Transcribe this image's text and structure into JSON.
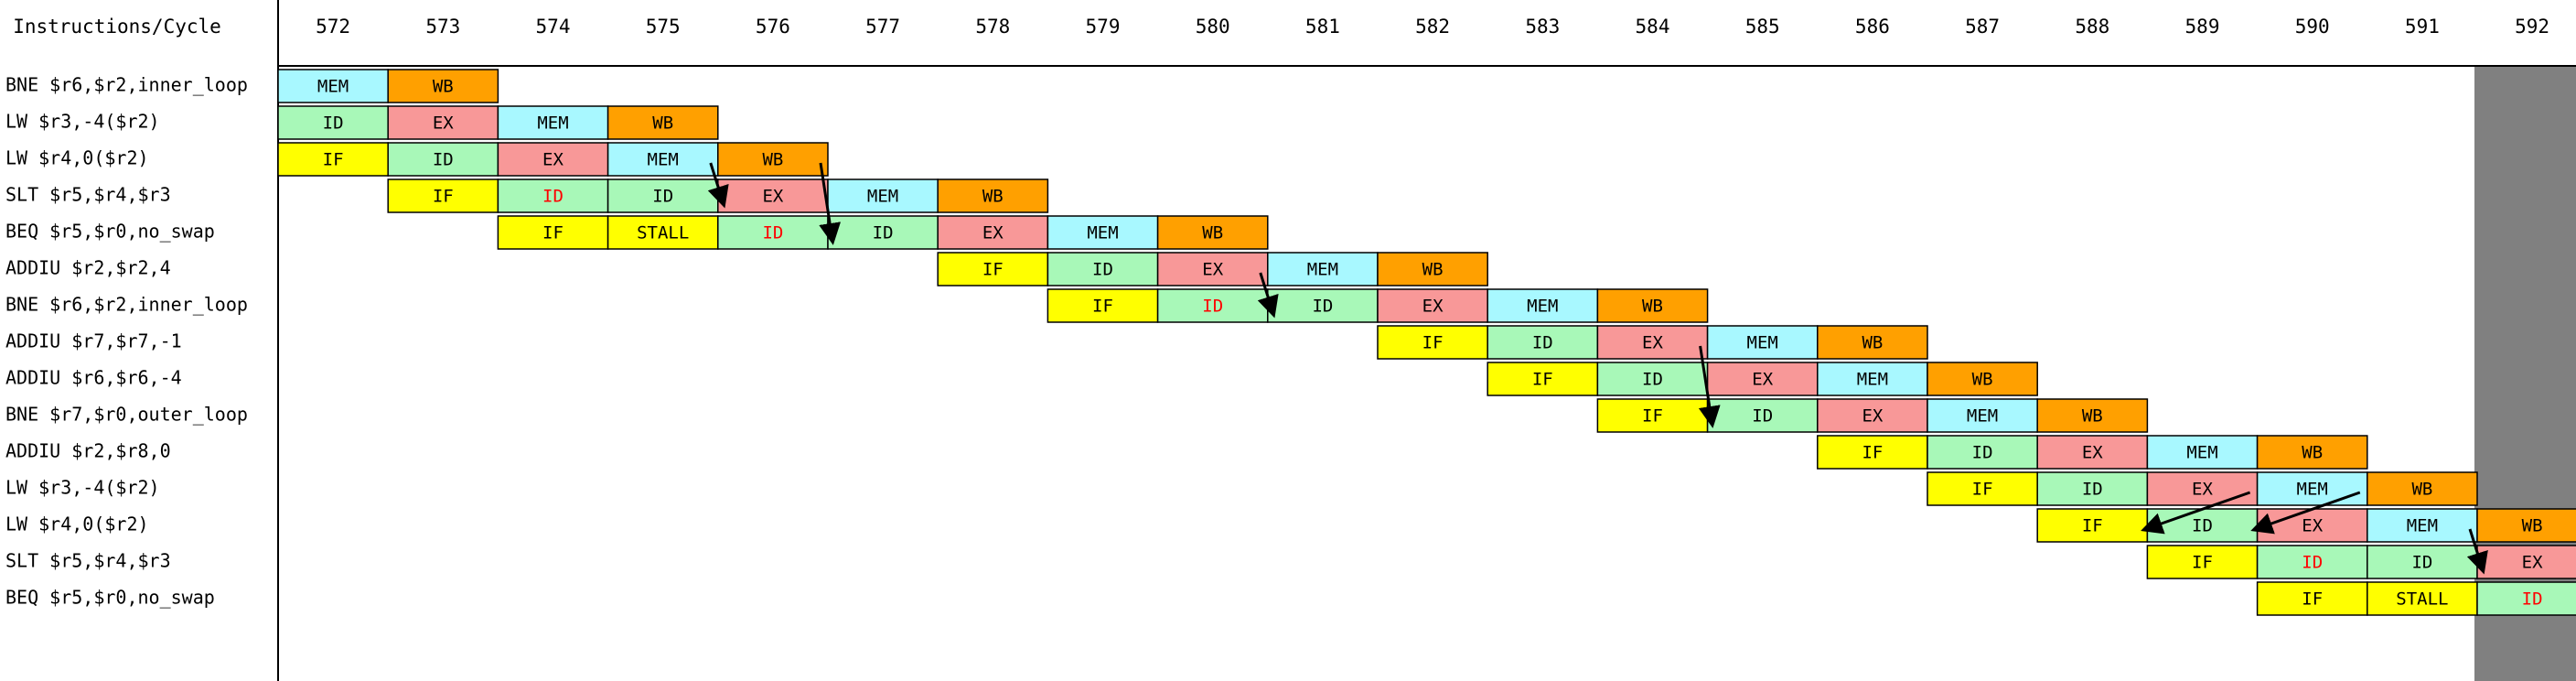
{
  "header": {
    "corner_label": "Instructions/Cycle",
    "cycles": [
      "572",
      "573",
      "574",
      "575",
      "576",
      "577",
      "578",
      "579",
      "580",
      "581",
      "582",
      "583",
      "584",
      "585",
      "586",
      "587",
      "588",
      "589",
      "590",
      "591",
      "592"
    ]
  },
  "instructions": [
    {
      "label": "BNE $r6,$r2,inner_loop",
      "stages": [
        {
          "c": 0,
          "s": "MEM"
        },
        {
          "c": 1,
          "s": "WB"
        }
      ]
    },
    {
      "label": "LW $r3,-4($r2)",
      "stages": [
        {
          "c": 0,
          "s": "ID"
        },
        {
          "c": 1,
          "s": "EX"
        },
        {
          "c": 2,
          "s": "MEM"
        },
        {
          "c": 3,
          "s": "WB"
        }
      ]
    },
    {
      "label": "LW $r4,0($r2)",
      "stages": [
        {
          "c": 0,
          "s": "IF"
        },
        {
          "c": 1,
          "s": "ID"
        },
        {
          "c": 2,
          "s": "EX"
        },
        {
          "c": 3,
          "s": "MEM"
        },
        {
          "c": 4,
          "s": "WB"
        }
      ]
    },
    {
      "label": "SLT $r5,$r4,$r3",
      "stages": [
        {
          "c": 1,
          "s": "IF"
        },
        {
          "c": 2,
          "s": "ID",
          "stall": true
        },
        {
          "c": 3,
          "s": "ID"
        },
        {
          "c": 4,
          "s": "EX"
        },
        {
          "c": 5,
          "s": "MEM"
        },
        {
          "c": 6,
          "s": "WB"
        }
      ]
    },
    {
      "label": "BEQ $r5,$r0,no_swap",
      "stages": [
        {
          "c": 2,
          "s": "IF"
        },
        {
          "c": 3,
          "s": "STALL"
        },
        {
          "c": 4,
          "s": "ID",
          "stall": true
        },
        {
          "c": 5,
          "s": "ID"
        },
        {
          "c": 6,
          "s": "EX"
        },
        {
          "c": 7,
          "s": "MEM"
        },
        {
          "c": 8,
          "s": "WB"
        }
      ]
    },
    {
      "label": "ADDIU $r2,$r2,4",
      "stages": [
        {
          "c": 6,
          "s": "IF"
        },
        {
          "c": 7,
          "s": "ID"
        },
        {
          "c": 8,
          "s": "EX"
        },
        {
          "c": 9,
          "s": "MEM"
        },
        {
          "c": 10,
          "s": "WB"
        }
      ]
    },
    {
      "label": "BNE $r6,$r2,inner_loop",
      "stages": [
        {
          "c": 7,
          "s": "IF"
        },
        {
          "c": 8,
          "s": "ID",
          "stall": true
        },
        {
          "c": 9,
          "s": "ID"
        },
        {
          "c": 10,
          "s": "EX"
        },
        {
          "c": 11,
          "s": "MEM"
        },
        {
          "c": 12,
          "s": "WB"
        }
      ]
    },
    {
      "label": "ADDIU $r7,$r7,-1",
      "stages": [
        {
          "c": 10,
          "s": "IF"
        },
        {
          "c": 11,
          "s": "ID"
        },
        {
          "c": 12,
          "s": "EX"
        },
        {
          "c": 13,
          "s": "MEM"
        },
        {
          "c": 14,
          "s": "WB"
        }
      ]
    },
    {
      "label": "ADDIU $r6,$r6,-4",
      "stages": [
        {
          "c": 11,
          "s": "IF"
        },
        {
          "c": 12,
          "s": "ID"
        },
        {
          "c": 13,
          "s": "EX"
        },
        {
          "c": 14,
          "s": "MEM"
        },
        {
          "c": 15,
          "s": "WB"
        }
      ]
    },
    {
      "label": "BNE $r7,$r0,outer_loop",
      "stages": [
        {
          "c": 12,
          "s": "IF"
        },
        {
          "c": 13,
          "s": "ID"
        },
        {
          "c": 14,
          "s": "EX"
        },
        {
          "c": 15,
          "s": "MEM"
        },
        {
          "c": 16,
          "s": "WB"
        }
      ]
    },
    {
      "label": "ADDIU $r2,$r8,0",
      "stages": [
        {
          "c": 14,
          "s": "IF"
        },
        {
          "c": 15,
          "s": "ID"
        },
        {
          "c": 16,
          "s": "EX"
        },
        {
          "c": 17,
          "s": "MEM"
        },
        {
          "c": 18,
          "s": "WB"
        }
      ]
    },
    {
      "label": "LW $r3,-4($r2)",
      "stages": [
        {
          "c": 15,
          "s": "IF"
        },
        {
          "c": 16,
          "s": "ID"
        },
        {
          "c": 17,
          "s": "EX"
        },
        {
          "c": 18,
          "s": "MEM"
        },
        {
          "c": 19,
          "s": "WB"
        }
      ]
    },
    {
      "label": "LW $r4,0($r2)",
      "stages": [
        {
          "c": 16,
          "s": "IF"
        },
        {
          "c": 17,
          "s": "ID"
        },
        {
          "c": 18,
          "s": "EX"
        },
        {
          "c": 19,
          "s": "MEM"
        },
        {
          "c": 20,
          "s": "WB"
        }
      ]
    },
    {
      "label": "SLT $r5,$r4,$r3",
      "stages": [
        {
          "c": 17,
          "s": "IF"
        },
        {
          "c": 18,
          "s": "ID",
          "stall": true
        },
        {
          "c": 19,
          "s": "ID"
        },
        {
          "c": 20,
          "s": "EX"
        }
      ]
    },
    {
      "label": "BEQ $r5,$r0,no_swap",
      "stages": [
        {
          "c": 18,
          "s": "IF"
        },
        {
          "c": 19,
          "s": "STALL"
        },
        {
          "c": 20,
          "s": "ID",
          "stall": true
        }
      ]
    }
  ],
  "forwarding_arrows": [
    {
      "from_row": 2,
      "from_col": 3,
      "to_row": 3,
      "to_col": 4
    },
    {
      "from_row": 2,
      "from_col": 4,
      "to_row": 4,
      "to_col": 5
    },
    {
      "from_row": 5,
      "from_col": 8,
      "to_row": 6,
      "to_col": 9
    },
    {
      "from_row": 7,
      "from_col": 12,
      "to_row": 9,
      "to_col": 13
    },
    {
      "from_row": 11,
      "from_col": 17,
      "to_row": 12,
      "to_col": 17
    },
    {
      "from_row": 11,
      "from_col": 18,
      "to_row": 12,
      "to_col": 18
    },
    {
      "from_row": 12,
      "from_col": 19,
      "to_row": 13,
      "to_col": 20
    }
  ],
  "colors": {
    "IF": "#ffff00",
    "ID": "#a8f8b8",
    "EX": "#f89898",
    "MEM": "#a8f8ff",
    "WB": "#ffa000",
    "STALL": "#ffff00",
    "stall_text": "#ff0000",
    "normal_text": "#000000",
    "shaded_column": "#808080",
    "grid_line": "#000000"
  }
}
